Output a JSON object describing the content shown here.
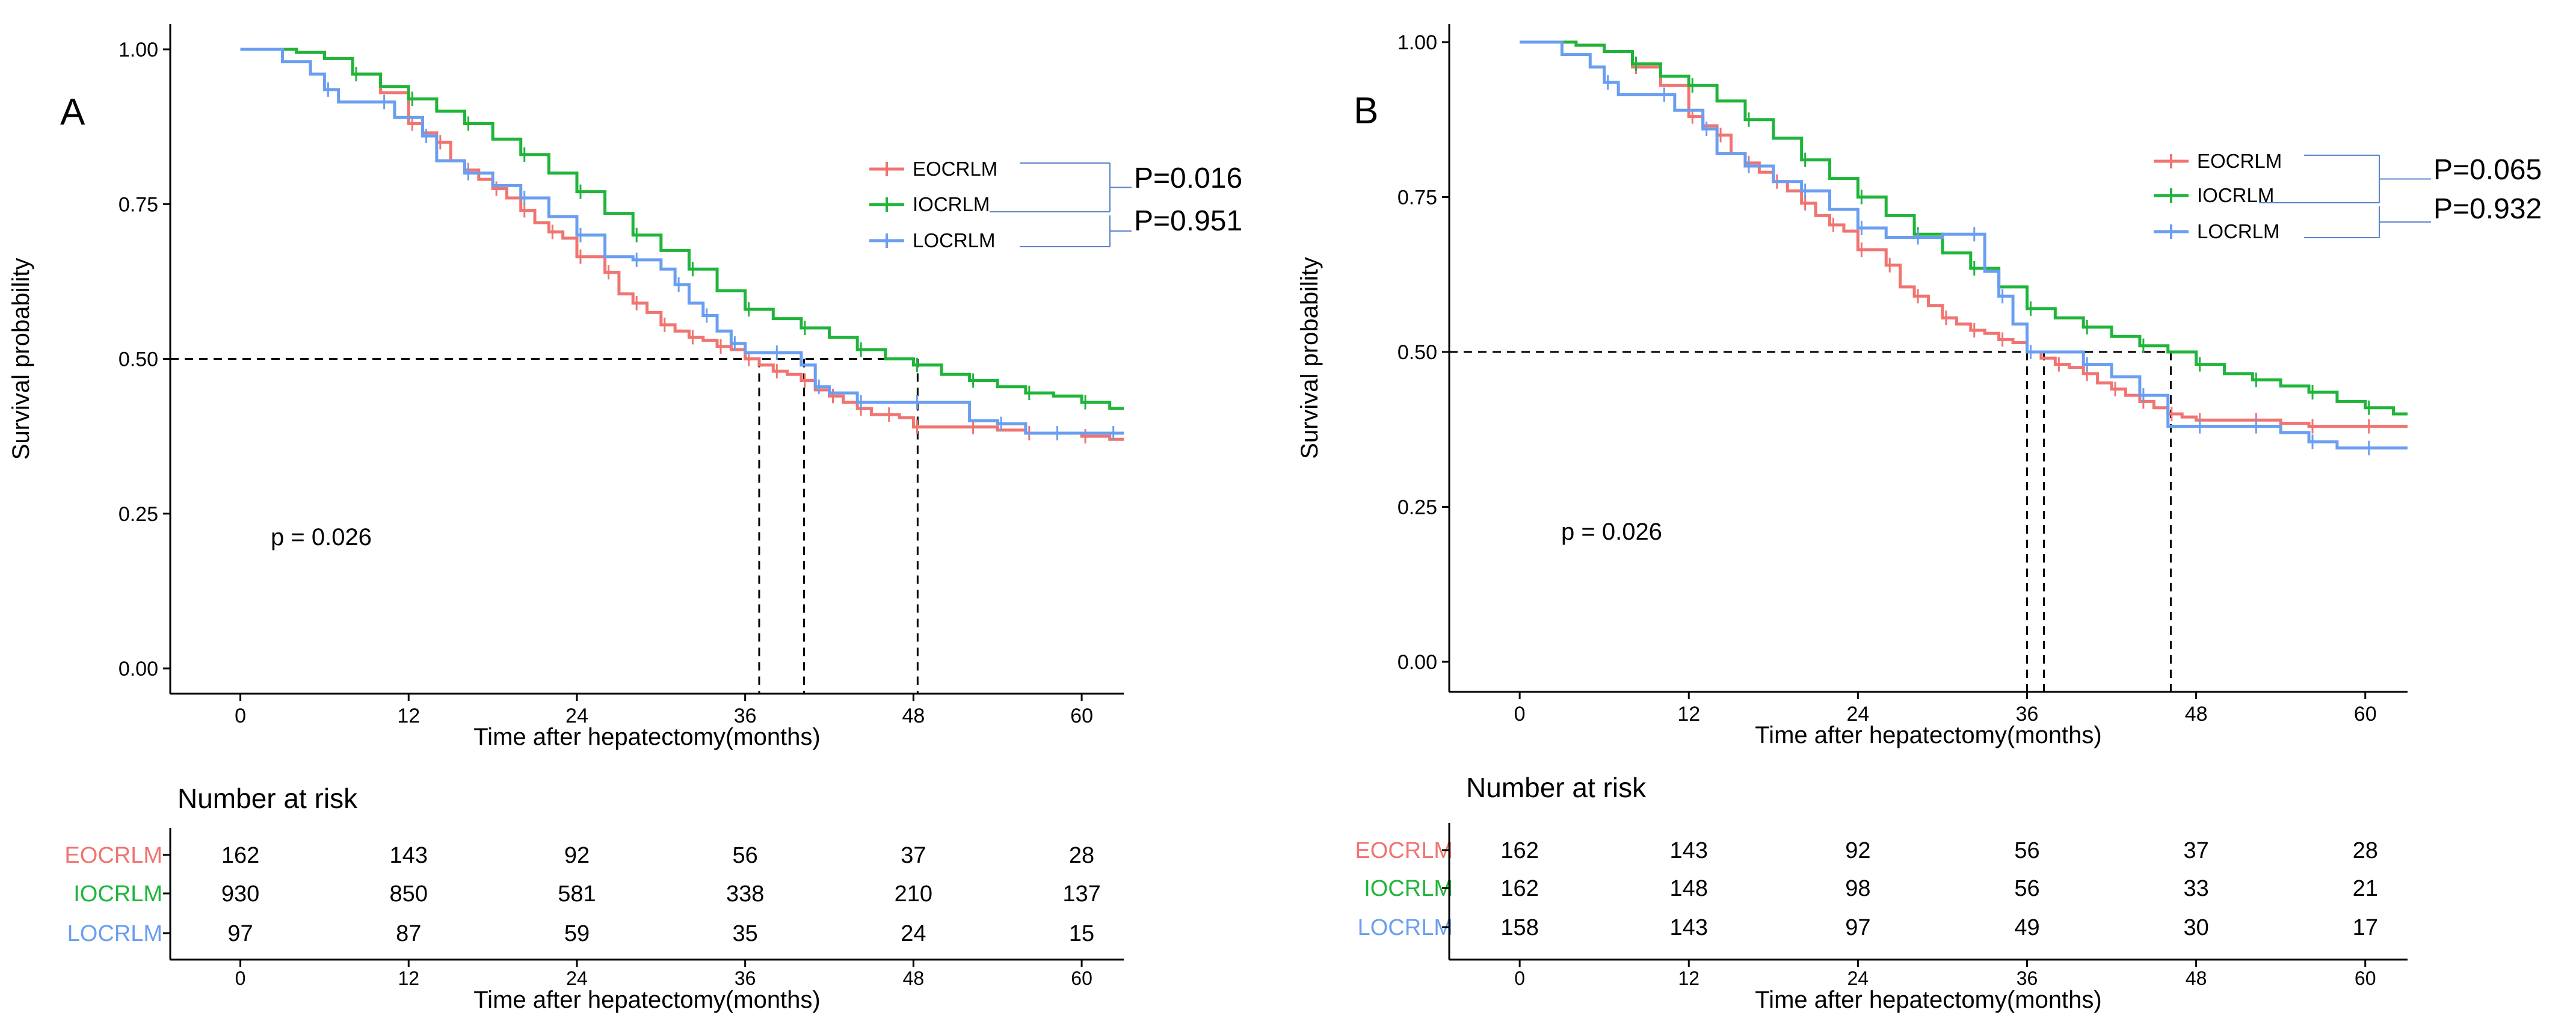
{
  "colors": {
    "EOCRLM": "#f07470",
    "IOCRLM": "#1fb53a",
    "LOCRLM": "#6a9ef0",
    "axis": "#000000",
    "bracket": "#5a84c8",
    "panel_bg": "#ffffff"
  },
  "chart_data": [
    {
      "type": "line",
      "panel_label": "A",
      "title": "",
      "xlabel": "Time after hepatectomy(months)",
      "ylabel": "Survival probability",
      "xlim": [
        -5,
        63
      ],
      "ylim": [
        0,
        1
      ],
      "xticks": [
        "0",
        "12",
        "24",
        "36",
        "48",
        "60"
      ],
      "yticks": [
        "0.00",
        "0.25",
        "0.50",
        "0.75",
        "1.00"
      ],
      "grid": false,
      "step": true,
      "median_line_y": 0.5,
      "median_times": [
        37,
        40.2,
        48.3
      ],
      "pvalue_text": "p = 0.026",
      "legend_position": "top-right",
      "legend": [
        "EOCRLM",
        "IOCRLM",
        "LOCRLM"
      ],
      "pairwise_p": [
        "P=0.016",
        "P=0.951"
      ],
      "series": [
        {
          "name": "EOCRLM",
          "x": [
            0,
            4,
            6,
            8,
            10,
            12,
            13,
            14,
            15,
            16,
            17,
            18,
            19,
            20,
            21,
            22,
            23,
            24,
            25,
            26,
            27,
            28,
            29,
            30,
            31,
            32,
            33,
            34,
            35,
            36,
            37,
            38,
            39,
            40,
            41,
            42,
            43,
            44,
            45,
            46,
            47,
            48,
            50,
            52,
            54,
            56,
            58,
            60,
            62
          ],
          "y": [
            1.0,
            0.995,
            0.985,
            0.96,
            0.93,
            0.88,
            0.865,
            0.85,
            0.82,
            0.805,
            0.79,
            0.775,
            0.76,
            0.74,
            0.72,
            0.705,
            0.695,
            0.665,
            0.665,
            0.64,
            0.605,
            0.59,
            0.575,
            0.555,
            0.545,
            0.535,
            0.53,
            0.52,
            0.515,
            0.5,
            0.49,
            0.48,
            0.475,
            0.465,
            0.45,
            0.44,
            0.43,
            0.42,
            0.41,
            0.41,
            0.405,
            0.39,
            0.39,
            0.39,
            0.385,
            0.38,
            0.38,
            0.375,
            0.37
          ]
        },
        {
          "name": "IOCRLM",
          "x": [
            0,
            4,
            6,
            8,
            10,
            12,
            14,
            16,
            18,
            20,
            22,
            24,
            26,
            28,
            30,
            32,
            34,
            36,
            38,
            40,
            42,
            44,
            46,
            48,
            50,
            52,
            54,
            56,
            58,
            60,
            62
          ],
          "y": [
            1.0,
            0.995,
            0.985,
            0.96,
            0.94,
            0.92,
            0.9,
            0.88,
            0.855,
            0.83,
            0.8,
            0.77,
            0.735,
            0.7,
            0.675,
            0.645,
            0.61,
            0.58,
            0.565,
            0.55,
            0.535,
            0.515,
            0.5,
            0.49,
            0.475,
            0.465,
            0.455,
            0.445,
            0.44,
            0.43,
            0.42
          ]
        },
        {
          "name": "LOCRLM",
          "x": [
            0,
            3,
            5,
            6,
            7,
            10,
            11,
            13,
            14,
            16,
            18,
            20,
            22,
            24,
            26,
            28,
            30,
            31,
            32,
            33,
            34,
            35,
            36,
            38,
            40,
            41,
            42,
            44,
            46,
            48,
            52,
            54,
            56,
            58,
            60,
            62
          ],
          "y": [
            1.0,
            0.98,
            0.96,
            0.935,
            0.915,
            0.915,
            0.89,
            0.86,
            0.82,
            0.8,
            0.78,
            0.76,
            0.73,
            0.7,
            0.665,
            0.66,
            0.645,
            0.62,
            0.59,
            0.57,
            0.545,
            0.525,
            0.51,
            0.51,
            0.49,
            0.455,
            0.445,
            0.43,
            0.43,
            0.43,
            0.4,
            0.395,
            0.38,
            0.38,
            0.38,
            0.38
          ]
        }
      ],
      "risk_table": {
        "title": "Number at risk",
        "xlabel": "Time after hepatectomy(months)",
        "time_points": [
          "0",
          "12",
          "24",
          "36",
          "48",
          "60"
        ],
        "rows": [
          {
            "name": "EOCRLM",
            "values": [
              "162",
              "143",
              "92",
              "56",
              "37",
              "28"
            ]
          },
          {
            "name": "IOCRLM",
            "values": [
              "930",
              "850",
              "581",
              "338",
              "210",
              "137"
            ]
          },
          {
            "name": "LOCRLM",
            "values": [
              "97",
              "87",
              "59",
              "35",
              "24",
              "15"
            ]
          }
        ]
      }
    },
    {
      "type": "line",
      "panel_label": "B",
      "title": "",
      "xlabel": "Time after hepatectomy(months)",
      "ylabel": "Survival probability",
      "xlim": [
        -5,
        63
      ],
      "ylim": [
        0,
        1
      ],
      "xticks": [
        "0",
        "12",
        "24",
        "36",
        "48",
        "60"
      ],
      "yticks": [
        "0.00",
        "0.25",
        "0.50",
        "0.75",
        "1.00"
      ],
      "grid": false,
      "step": true,
      "median_line_y": 0.5,
      "median_times": [
        36,
        37.2,
        46.2
      ],
      "pvalue_text": "p = 0.026",
      "legend_position": "top-right",
      "legend": [
        "EOCRLM",
        "IOCRLM",
        "LOCRLM"
      ],
      "pairwise_p": [
        "P=0.065",
        "P=0.932"
      ],
      "series": [
        {
          "name": "EOCRLM",
          "x": [
            0,
            4,
            6,
            8,
            10,
            12,
            13,
            14,
            15,
            16,
            17,
            18,
            19,
            20,
            21,
            22,
            23,
            24,
            25,
            26,
            27,
            28,
            29,
            30,
            31,
            32,
            33,
            34,
            35,
            36,
            37,
            38,
            39,
            40,
            41,
            42,
            43,
            44,
            45,
            46,
            47,
            48,
            50,
            52,
            54,
            56,
            58,
            60,
            62
          ],
          "y": [
            1.0,
            0.995,
            0.985,
            0.96,
            0.93,
            0.88,
            0.865,
            0.85,
            0.82,
            0.805,
            0.79,
            0.775,
            0.76,
            0.74,
            0.72,
            0.705,
            0.695,
            0.665,
            0.665,
            0.64,
            0.605,
            0.59,
            0.575,
            0.555,
            0.545,
            0.535,
            0.53,
            0.52,
            0.515,
            0.5,
            0.49,
            0.48,
            0.475,
            0.465,
            0.45,
            0.44,
            0.43,
            0.42,
            0.41,
            0.4,
            0.395,
            0.39,
            0.39,
            0.39,
            0.385,
            0.38,
            0.38,
            0.38,
            0.38
          ]
        },
        {
          "name": "IOCRLM",
          "x": [
            0,
            4,
            6,
            8,
            10,
            12,
            14,
            16,
            18,
            20,
            22,
            24,
            26,
            28,
            30,
            32,
            34,
            36,
            38,
            40,
            42,
            44,
            46,
            48,
            50,
            52,
            54,
            56,
            58,
            60,
            62
          ],
          "y": [
            1.0,
            0.995,
            0.985,
            0.965,
            0.945,
            0.93,
            0.905,
            0.875,
            0.845,
            0.81,
            0.78,
            0.75,
            0.72,
            0.69,
            0.66,
            0.635,
            0.605,
            0.57,
            0.555,
            0.54,
            0.525,
            0.51,
            0.5,
            0.48,
            0.465,
            0.455,
            0.445,
            0.435,
            0.42,
            0.41,
            0.4
          ]
        },
        {
          "name": "LOCRLM",
          "x": [
            0,
            3,
            5,
            6,
            7,
            10,
            11,
            13,
            14,
            16,
            18,
            20,
            22,
            24,
            26,
            28,
            30,
            32,
            33,
            34,
            35,
            36,
            38,
            40,
            42,
            44,
            46,
            48,
            50,
            52,
            54,
            56,
            58,
            60,
            62
          ],
          "y": [
            1.0,
            0.98,
            0.96,
            0.935,
            0.915,
            0.915,
            0.89,
            0.86,
            0.82,
            0.8,
            0.775,
            0.76,
            0.73,
            0.7,
            0.685,
            0.685,
            0.69,
            0.69,
            0.63,
            0.59,
            0.545,
            0.5,
            0.5,
            0.48,
            0.46,
            0.43,
            0.38,
            0.38,
            0.38,
            0.38,
            0.37,
            0.355,
            0.345,
            0.345,
            0.345
          ]
        }
      ],
      "risk_table": {
        "title": "Number at risk",
        "xlabel": "Time after hepatectomy(months)",
        "time_points": [
          "0",
          "12",
          "24",
          "36",
          "48",
          "60"
        ],
        "rows": [
          {
            "name": "EOCRLM",
            "values": [
              "162",
              "143",
              "92",
              "56",
              "37",
              "28"
            ]
          },
          {
            "name": "IOCRLM",
            "values": [
              "162",
              "148",
              "98",
              "56",
              "33",
              "21"
            ]
          },
          {
            "name": "LOCRLM",
            "values": [
              "158",
              "143",
              "97",
              "49",
              "30",
              "17"
            ]
          }
        ]
      }
    }
  ]
}
